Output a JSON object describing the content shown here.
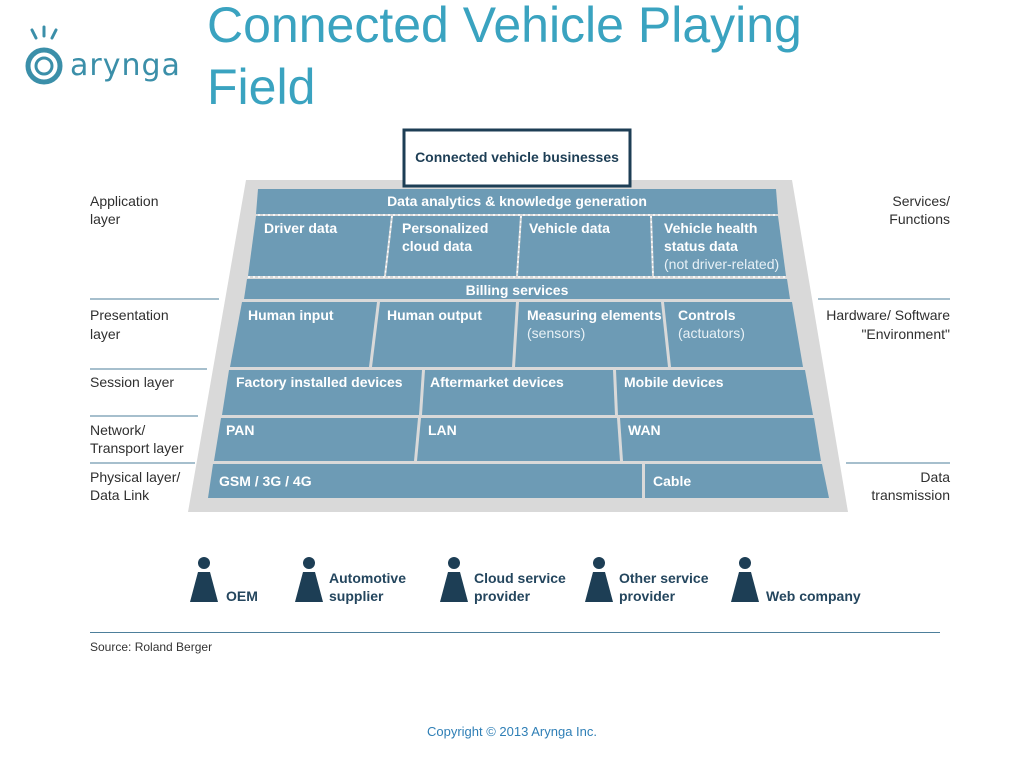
{
  "logo": {
    "text": "arynga"
  },
  "title": {
    "line1": "Connected Vehicle Playing",
    "line2": "Field"
  },
  "header_box": "Connected vehicle businesses",
  "rows": {
    "analytics": "Data analytics & knowledge generation",
    "data_cells": [
      {
        "line1": "Driver data",
        "line2": "",
        "line3": ""
      },
      {
        "line1": "Personalized",
        "line2": "cloud data",
        "line3": ""
      },
      {
        "line1": "Vehicle data",
        "line2": "",
        "line3": ""
      },
      {
        "line1": "Vehicle health",
        "line2": "status data",
        "line3": "(not driver-related)"
      }
    ],
    "billing": "Billing services",
    "presentation_cells": [
      {
        "line1": "Human input",
        "line2": ""
      },
      {
        "line1": "Human output",
        "line2": ""
      },
      {
        "line1": "Measuring elements",
        "line2": "(sensors)"
      },
      {
        "line1": "Controls",
        "line2": "(actuators)"
      }
    ],
    "session_cells": [
      "Factory installed devices",
      "Aftermarket devices",
      "Mobile devices"
    ],
    "network_cells": [
      "PAN",
      "LAN",
      "WAN"
    ],
    "physical_cells": [
      "GSM / 3G / 4G",
      "Cable"
    ]
  },
  "left_labels": [
    {
      "line1": "Application",
      "line2": "layer"
    },
    {
      "line1": "Presentation",
      "line2": "layer"
    },
    {
      "line1": "Session layer",
      "line2": ""
    },
    {
      "line1": "Network/",
      "line2": "Transport layer"
    },
    {
      "line1": "Physical layer/",
      "line2": "Data Link"
    }
  ],
  "right_labels": [
    {
      "line1": "Services/",
      "line2": "Functions"
    },
    {
      "line1": "Hardware/ Software",
      "line2": "\"Environment\""
    },
    {
      "line1": "Data",
      "line2": "transmission"
    }
  ],
  "players": [
    {
      "icon": "person-icon",
      "line1": "OEM",
      "line2": ""
    },
    {
      "icon": "person-icon",
      "line1": "Automotive",
      "line2": "supplier"
    },
    {
      "icon": "person-icon",
      "line1": "Cloud service",
      "line2": "provider"
    },
    {
      "icon": "person-icon",
      "line1": "Other service",
      "line2": "provider"
    },
    {
      "icon": "person-icon",
      "line1": "Web company",
      "line2": ""
    }
  ],
  "source": "Source: Roland Berger",
  "copyright": "Copyright © 2013 Arynga Inc.",
  "colors": {
    "cell": "#6d9bb5",
    "frame": "#dcdcdc",
    "navy": "#1d3e55",
    "title": "#3aa3c0"
  }
}
